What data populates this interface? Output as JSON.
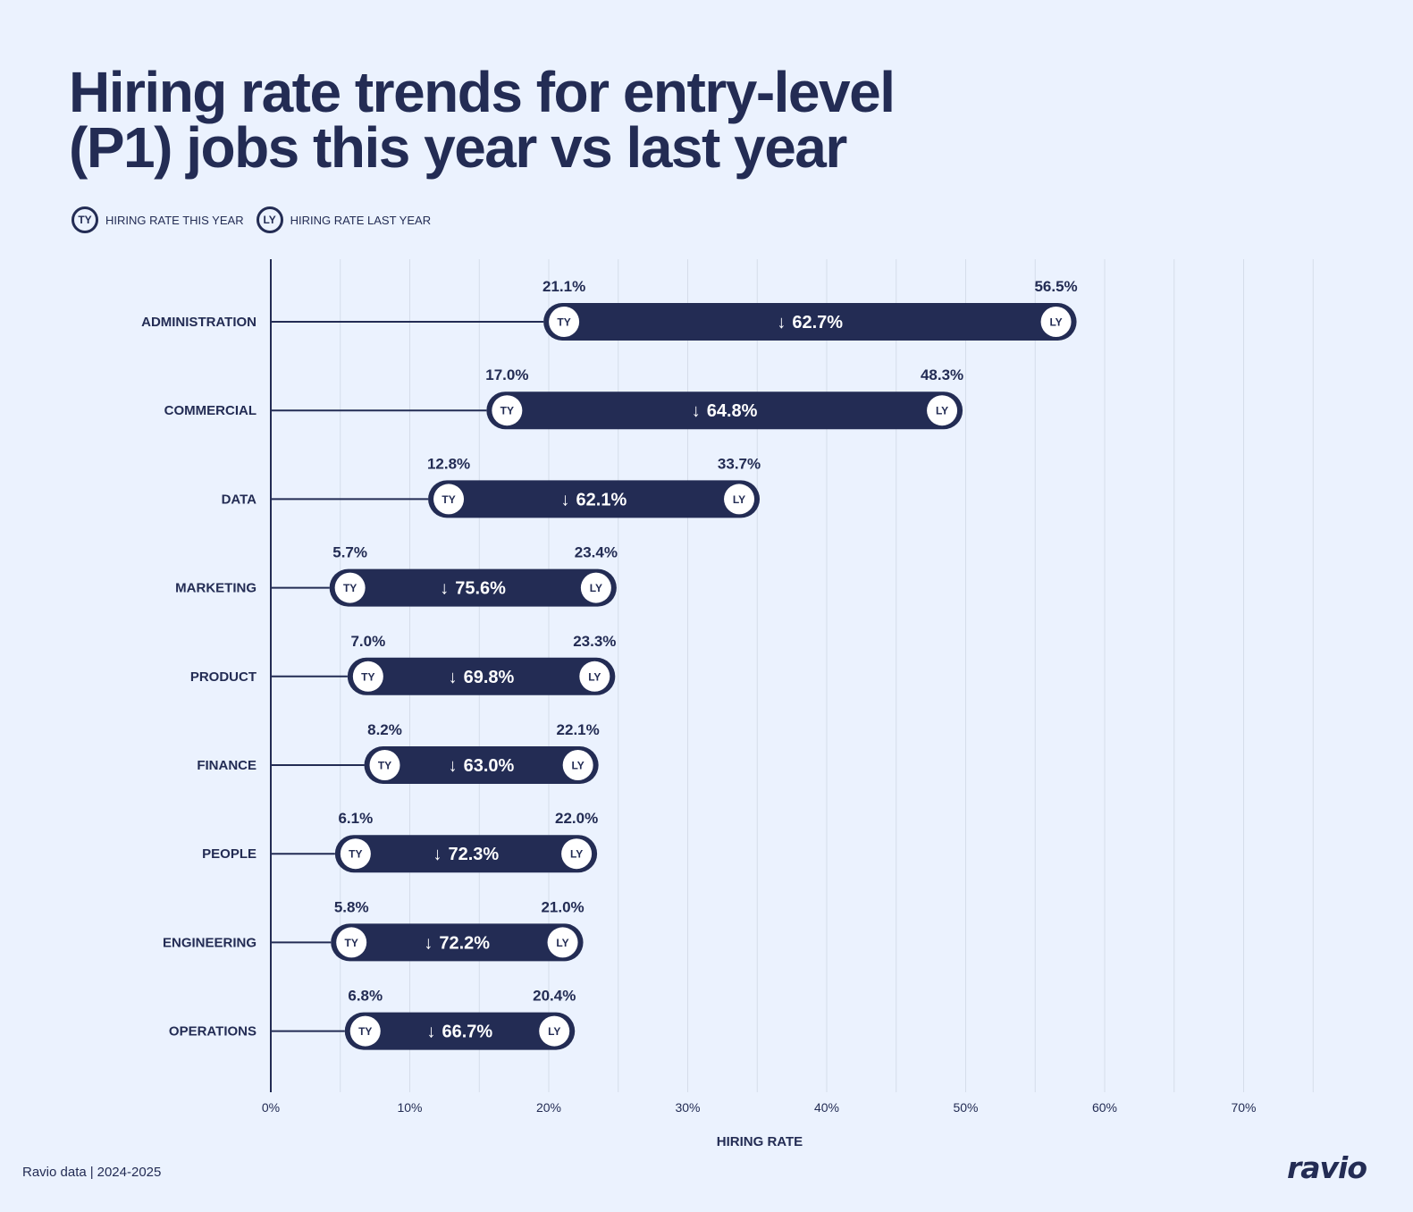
{
  "title_lines": [
    "Hiring rate trends for entry-level",
    "(P1) jobs this year vs last year"
  ],
  "legend": [
    {
      "badge": "TY",
      "label": "HIRING RATE THIS YEAR"
    },
    {
      "badge": "LY",
      "label": "HIRING RATE LAST YEAR"
    }
  ],
  "footer": {
    "source": "Ravio data",
    "years": "2024-2025",
    "brand": "ravio"
  },
  "colors": {
    "background": "#EBF2FE",
    "bar": "#232C54",
    "gridline": "#D5DDEA",
    "badge_fill": "#FFFFFF"
  },
  "chart_data": {
    "type": "dumbbell",
    "xlabel": "HIRING RATE",
    "xlim": [
      0,
      75
    ],
    "xticks": [
      0,
      10,
      20,
      30,
      40,
      50,
      60,
      70
    ],
    "xtick_labels": [
      "0%",
      "10%",
      "20%",
      "30%",
      "40%",
      "50%",
      "60%",
      "70%"
    ],
    "minor_gridlines": [
      5,
      15,
      25,
      35,
      45,
      55,
      65,
      75
    ],
    "grid": true,
    "categories": [
      "ADMINISTRATION",
      "COMMERCIAL",
      "DATA",
      "MARKETING",
      "PRODUCT",
      "FINANCE",
      "PEOPLE",
      "ENGINEERING",
      "OPERATIONS"
    ],
    "series": [
      {
        "badge": "TY",
        "name": "HIRING RATE THIS YEAR",
        "values": [
          21.1,
          17.0,
          12.8,
          5.7,
          7.0,
          8.2,
          6.1,
          5.8,
          6.8
        ],
        "labels": [
          "21.1%",
          "17.0%",
          "12.8%",
          "5.7%",
          "7.0%",
          "8.2%",
          "6.1%",
          "5.8%",
          "6.8%"
        ]
      },
      {
        "badge": "LY",
        "name": "HIRING RATE LAST YEAR",
        "values": [
          56.5,
          48.3,
          33.7,
          23.4,
          23.3,
          22.1,
          22.0,
          21.0,
          20.4
        ],
        "labels": [
          "56.5%",
          "48.3%",
          "33.7%",
          "23.4%",
          "23.3%",
          "22.1%",
          "22.0%",
          "21.0%",
          "20.4%"
        ]
      }
    ],
    "change_labels": [
      "62.7%",
      "64.8%",
      "62.1%",
      "75.6%",
      "69.8%",
      "63.0%",
      "72.3%",
      "72.2%",
      "66.7%"
    ],
    "change_direction": "down"
  }
}
